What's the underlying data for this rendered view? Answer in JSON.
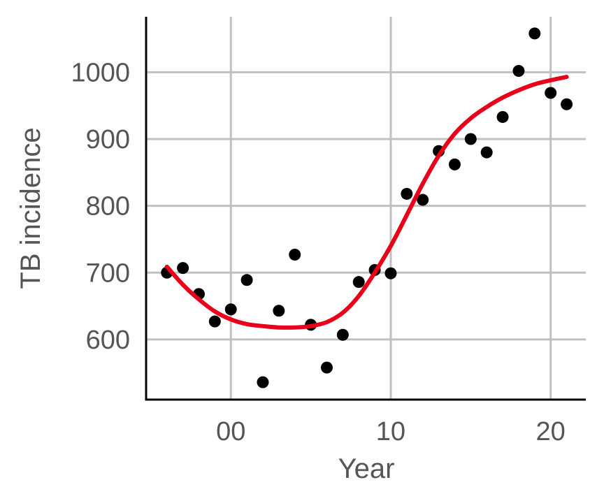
{
  "chart_data": {
    "type": "scatter",
    "title": "",
    "xlabel": "Year",
    "ylabel": "TB incidence",
    "xlim": [
      -5.3,
      22.2
    ],
    "ylim": [
      510,
      1083
    ],
    "x_ticks": [
      0,
      10,
      20
    ],
    "x_tick_labels": [
      "00",
      "10",
      "20"
    ],
    "y_ticks": [
      600,
      700,
      800,
      900,
      1000
    ],
    "y_tick_labels": [
      "600",
      "700",
      "800",
      "900",
      "1000"
    ],
    "grid": true,
    "legend": "none",
    "colors": {
      "points": "#000000",
      "trend": "#e8001a",
      "grid": "#c0c0c0"
    },
    "series": [
      {
        "kind": "points",
        "x": [
          -4,
          -3,
          -2,
          -1,
          0,
          1,
          2,
          3,
          4,
          5,
          6,
          7,
          8,
          9,
          10,
          11,
          12,
          13,
          14,
          15,
          16,
          17,
          18,
          19,
          20,
          21
        ],
        "y": [
          700,
          707,
          668,
          627,
          645,
          689,
          536,
          643,
          727,
          622,
          558,
          607,
          686,
          704,
          699,
          818,
          809,
          882,
          862,
          900,
          880,
          933,
          1002,
          1058,
          969,
          952
        ]
      },
      {
        "kind": "smooth",
        "x": [
          -4,
          -3,
          -2,
          -1,
          0,
          1,
          2,
          3,
          4,
          5,
          6,
          7,
          8,
          9,
          10,
          11,
          12,
          13,
          14,
          15,
          16,
          17,
          18,
          19,
          20,
          21
        ],
        "y": [
          709,
          682,
          660,
          642,
          630,
          623,
          620,
          618,
          618,
          620,
          626,
          640,
          665,
          700,
          740,
          786,
          833,
          875,
          908,
          931,
          948,
          962,
          973,
          982,
          988,
          993
        ]
      }
    ]
  }
}
